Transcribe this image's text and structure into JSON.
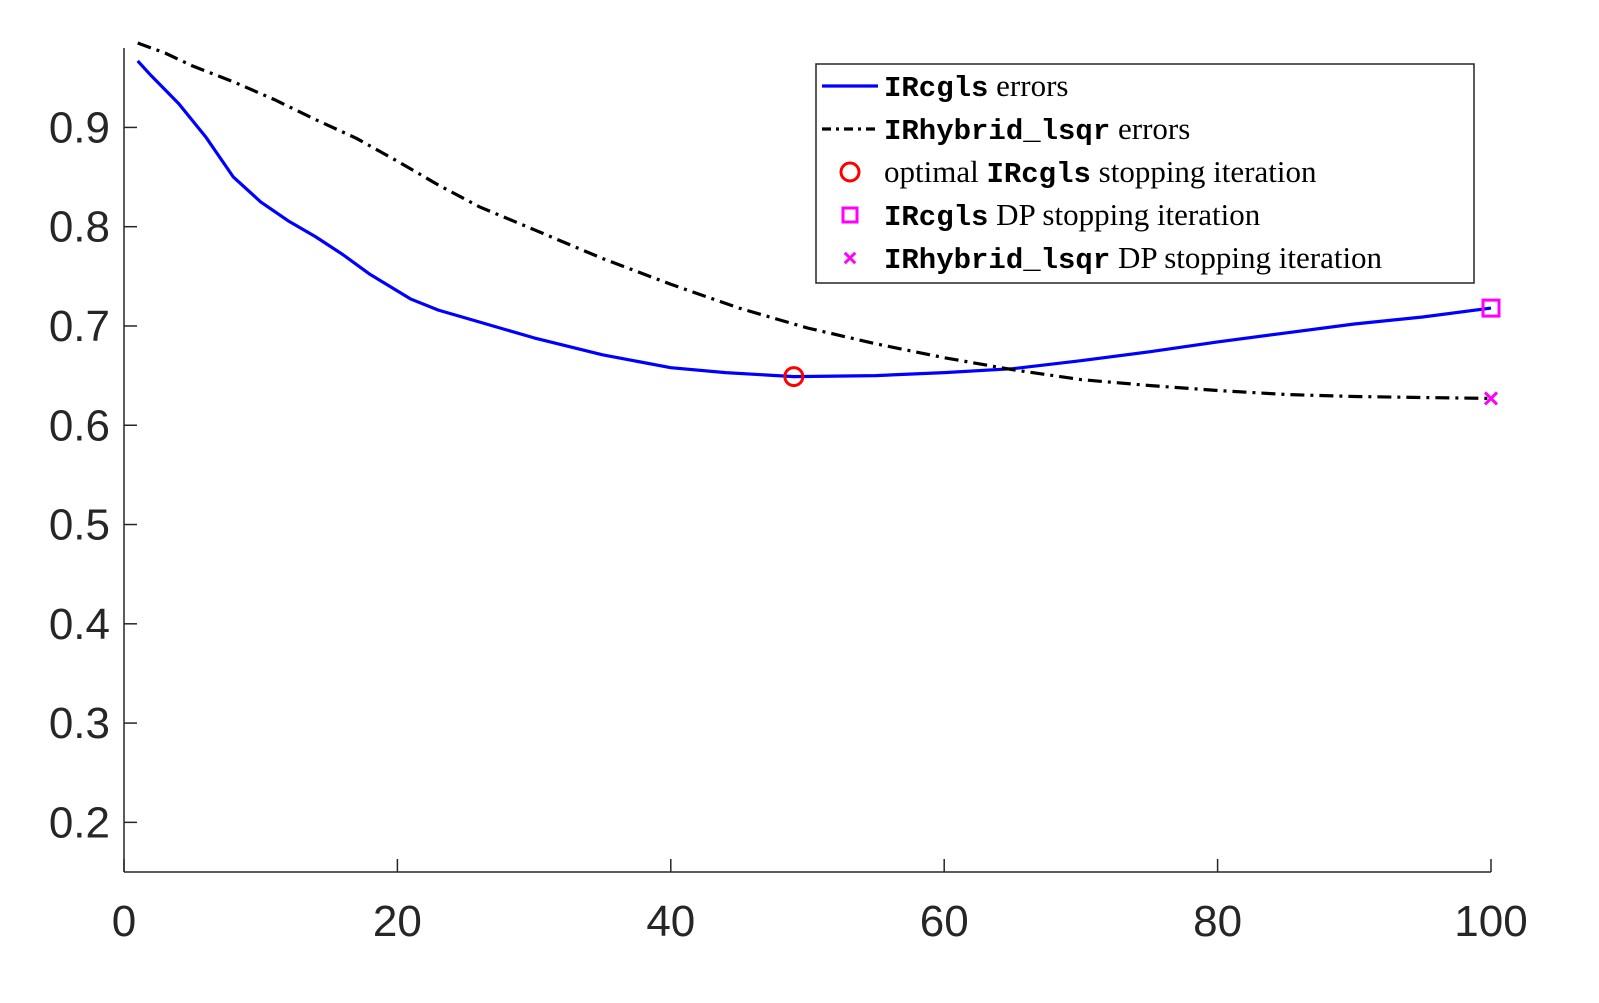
{
  "chart_data": {
    "type": "line",
    "title": "",
    "xlabel": "",
    "ylabel": "",
    "xlim": [
      0,
      100
    ],
    "ylim": [
      0.15,
      0.98
    ],
    "x_ticks": [
      0,
      20,
      40,
      60,
      80,
      100
    ],
    "x_tick_labels": [
      "0",
      "20",
      "40",
      "60",
      "80",
      "100"
    ],
    "y_ticks": [
      0.2,
      0.3,
      0.4,
      0.5,
      0.6,
      0.7,
      0.8,
      0.9
    ],
    "y_tick_labels": [
      "0.2",
      "0.3",
      "0.4",
      "0.5",
      "0.6",
      "0.7",
      "0.8",
      "0.9"
    ],
    "grid": false,
    "legend_position": "top-right",
    "series": [
      {
        "name": "IRcgls errors",
        "name_parts": [
          {
            "text": "IRcgls",
            "mono": true
          },
          {
            "text": " errors",
            "mono": false
          }
        ],
        "style": "solid",
        "color": "#0000ff",
        "x": [
          1,
          2,
          4,
          6,
          8,
          10,
          12,
          14,
          16,
          18,
          21,
          23,
          26,
          30,
          35,
          40,
          44,
          49,
          55,
          60,
          65,
          70,
          75,
          80,
          85,
          90,
          95,
          100
        ],
        "y": [
          0.967,
          0.952,
          0.924,
          0.89,
          0.85,
          0.825,
          0.806,
          0.79,
          0.772,
          0.752,
          0.727,
          0.716,
          0.704,
          0.688,
          0.671,
          0.658,
          0.653,
          0.649,
          0.65,
          0.653,
          0.657,
          0.665,
          0.674,
          0.684,
          0.693,
          0.702,
          0.709,
          0.718
        ]
      },
      {
        "name": "IRhybrid_lsqr errors",
        "name_parts": [
          {
            "text": "IRhybrid_lsqr",
            "mono": true
          },
          {
            "text": " errors",
            "mono": false
          }
        ],
        "style": "dashdot",
        "color": "#000000",
        "x": [
          1,
          3,
          5,
          8,
          11,
          14,
          17,
          20,
          23,
          26,
          30,
          35,
          40,
          45,
          50,
          55,
          60,
          65,
          70,
          75,
          80,
          85,
          90,
          95,
          100
        ],
        "y": [
          0.985,
          0.975,
          0.962,
          0.946,
          0.928,
          0.908,
          0.889,
          0.866,
          0.842,
          0.82,
          0.797,
          0.768,
          0.742,
          0.718,
          0.698,
          0.682,
          0.668,
          0.656,
          0.646,
          0.64,
          0.635,
          0.631,
          0.629,
          0.628,
          0.627
        ]
      }
    ],
    "markers": [
      {
        "name": "optimal IRcgls stopping iteration",
        "name_parts": [
          {
            "text": "optimal ",
            "mono": false
          },
          {
            "text": "IRcgls",
            "mono": true
          },
          {
            "text": " stopping iteration",
            "mono": false
          }
        ],
        "shape": "circle",
        "color": "#ff0000",
        "x": 49,
        "y": 0.649
      },
      {
        "name": "IRcgls DP stopping iteration",
        "name_parts": [
          {
            "text": "IRcgls",
            "mono": true
          },
          {
            "text": " DP stopping iteration",
            "mono": false
          }
        ],
        "shape": "square",
        "color": "#ff00ff",
        "x": 100,
        "y": 0.718
      },
      {
        "name": "IRhybrid_lsqr DP stopping iteration",
        "name_parts": [
          {
            "text": "IRhybrid_lsqr",
            "mono": true
          },
          {
            "text": " DP stopping iteration",
            "mono": false
          }
        ],
        "shape": "x",
        "color": "#ff00ff",
        "x": 100,
        "y": 0.627
      }
    ]
  }
}
